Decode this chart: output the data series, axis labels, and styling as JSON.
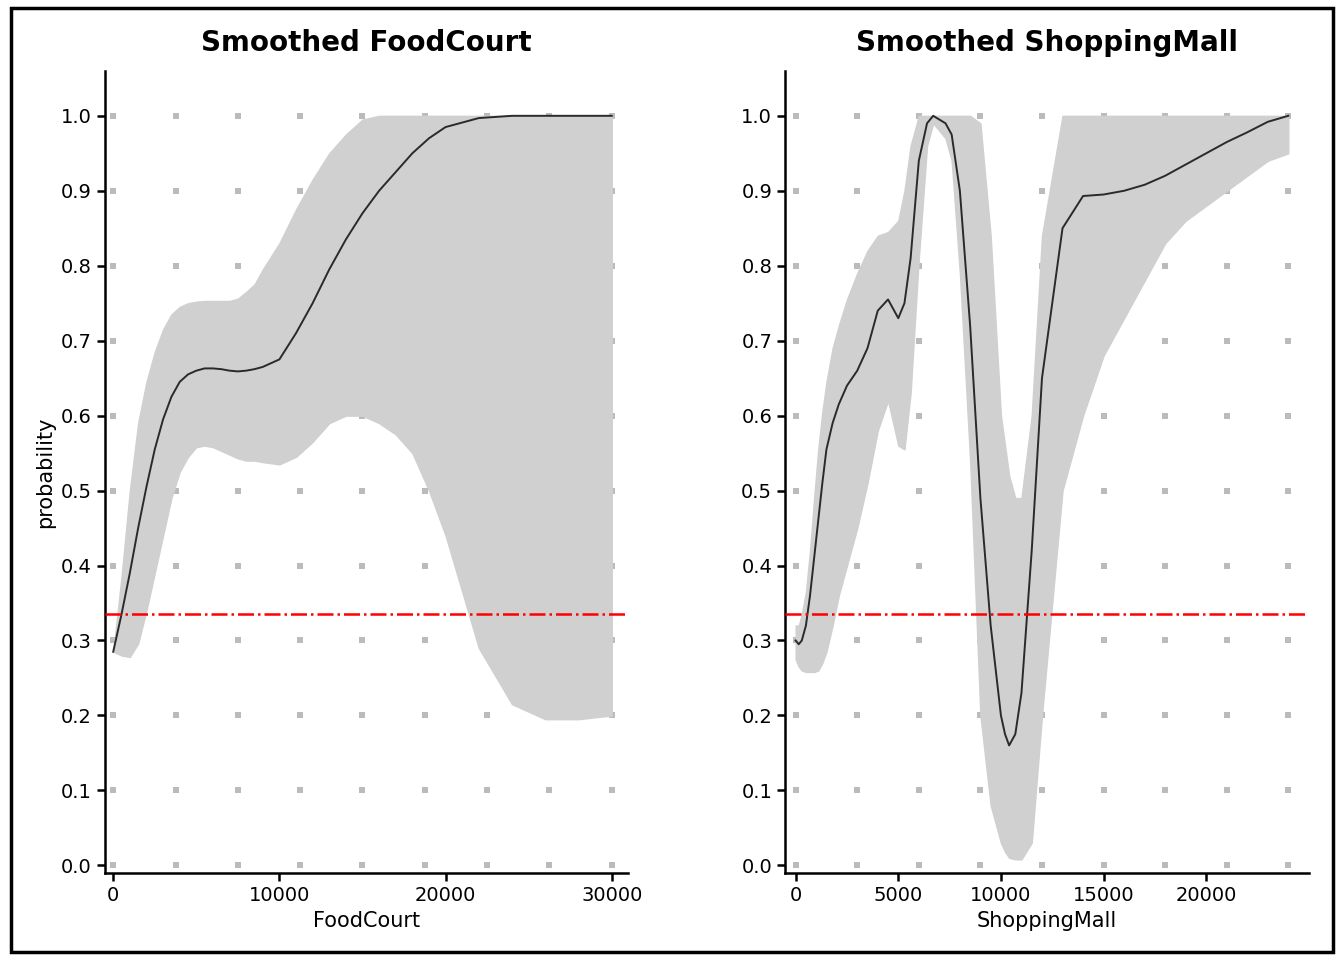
{
  "fc_title": "Smoothed FoodCourt",
  "sm_title": "Smoothed ShoppingMall",
  "fc_xlabel": "FoodCourt",
  "sm_xlabel": "ShoppingMall",
  "ylabel": "probability",
  "avg_prob": 0.336,
  "fc_xlim": [
    -500,
    31000
  ],
  "fc_ylim": [
    -0.01,
    1.06
  ],
  "sm_xlim": [
    -500,
    25000
  ],
  "sm_ylim": [
    -0.01,
    1.06
  ],
  "fc_xticks": [
    0,
    10000,
    20000,
    30000
  ],
  "sm_xticks": [
    0,
    5000,
    10000,
    15000,
    20000
  ],
  "yticks": [
    0.0,
    0.1,
    0.2,
    0.3,
    0.4,
    0.5,
    0.6,
    0.7,
    0.8,
    0.9,
    1.0
  ],
  "title_fontsize": 20,
  "label_fontsize": 15,
  "tick_fontsize": 14,
  "line_color": "#2a2a2a",
  "ci_color": "#d0d0d0",
  "avg_color": "#ff0000",
  "background_color": "#ffffff",
  "border_color": "#000000",
  "grid_color": "#b0b0b0",
  "fc_x": [
    0,
    500,
    1000,
    1500,
    2000,
    2500,
    3000,
    3500,
    4000,
    4500,
    5000,
    5500,
    6000,
    6500,
    7000,
    7500,
    8000,
    8500,
    9000,
    10000,
    11000,
    12000,
    13000,
    14000,
    15000,
    16000,
    17000,
    18000,
    19000,
    20000,
    22000,
    24000,
    26000,
    28000,
    30000
  ],
  "fc_y": [
    0.285,
    0.335,
    0.39,
    0.45,
    0.505,
    0.555,
    0.595,
    0.625,
    0.645,
    0.655,
    0.66,
    0.663,
    0.663,
    0.662,
    0.66,
    0.659,
    0.66,
    0.662,
    0.665,
    0.675,
    0.71,
    0.75,
    0.795,
    0.835,
    0.87,
    0.9,
    0.925,
    0.95,
    0.97,
    0.985,
    0.997,
    1.0,
    1.0,
    1.0,
    1.0
  ],
  "fc_upper": [
    0.285,
    0.385,
    0.5,
    0.59,
    0.645,
    0.685,
    0.715,
    0.735,
    0.745,
    0.75,
    0.752,
    0.753,
    0.753,
    0.753,
    0.753,
    0.756,
    0.765,
    0.775,
    0.795,
    0.83,
    0.875,
    0.915,
    0.95,
    0.975,
    0.995,
    1.0,
    1.0,
    1.0,
    1.0,
    1.0,
    1.0,
    1.0,
    1.0,
    1.0,
    1.0
  ],
  "fc_lower": [
    0.285,
    0.28,
    0.278,
    0.296,
    0.34,
    0.39,
    0.44,
    0.49,
    0.525,
    0.545,
    0.558,
    0.56,
    0.558,
    0.553,
    0.548,
    0.543,
    0.54,
    0.54,
    0.538,
    0.535,
    0.545,
    0.565,
    0.59,
    0.6,
    0.6,
    0.59,
    0.575,
    0.55,
    0.5,
    0.44,
    0.29,
    0.215,
    0.195,
    0.195,
    0.2
  ],
  "sm_x": [
    0,
    150,
    300,
    500,
    700,
    900,
    1100,
    1300,
    1500,
    1800,
    2100,
    2500,
    3000,
    3500,
    4000,
    4500,
    5000,
    5300,
    5600,
    6000,
    6400,
    6700,
    7000,
    7300,
    7600,
    8000,
    8500,
    9000,
    9500,
    10000,
    10200,
    10400,
    10700,
    11000,
    11500,
    12000,
    13000,
    14000,
    15000,
    16000,
    17000,
    18000,
    19000,
    20000,
    21000,
    22000,
    23000,
    24000
  ],
  "sm_y": [
    0.3,
    0.295,
    0.3,
    0.32,
    0.36,
    0.41,
    0.46,
    0.51,
    0.555,
    0.59,
    0.615,
    0.64,
    0.66,
    0.69,
    0.74,
    0.755,
    0.73,
    0.75,
    0.81,
    0.94,
    0.99,
    1.0,
    0.995,
    0.99,
    0.975,
    0.9,
    0.72,
    0.49,
    0.32,
    0.2,
    0.175,
    0.16,
    0.175,
    0.23,
    0.42,
    0.65,
    0.85,
    0.893,
    0.895,
    0.9,
    0.908,
    0.92,
    0.935,
    0.95,
    0.965,
    0.978,
    0.992,
    1.0
  ],
  "sm_upper": [
    0.32,
    0.32,
    0.335,
    0.365,
    0.42,
    0.49,
    0.555,
    0.605,
    0.645,
    0.69,
    0.72,
    0.755,
    0.79,
    0.82,
    0.84,
    0.845,
    0.86,
    0.9,
    0.96,
    1.0,
    1.0,
    1.0,
    1.0,
    1.0,
    1.0,
    1.0,
    1.0,
    0.99,
    0.84,
    0.6,
    0.56,
    0.52,
    0.49,
    0.49,
    0.6,
    0.84,
    1.0,
    1.0,
    1.0,
    1.0,
    1.0,
    1.0,
    1.0,
    1.0,
    1.0,
    1.0,
    1.0,
    1.0
  ],
  "sm_lower": [
    0.275,
    0.265,
    0.26,
    0.258,
    0.258,
    0.258,
    0.26,
    0.27,
    0.285,
    0.32,
    0.36,
    0.4,
    0.45,
    0.51,
    0.58,
    0.62,
    0.56,
    0.555,
    0.63,
    0.81,
    0.96,
    0.99,
    0.98,
    0.97,
    0.94,
    0.79,
    0.54,
    0.2,
    0.08,
    0.03,
    0.018,
    0.01,
    0.008,
    0.008,
    0.03,
    0.2,
    0.5,
    0.6,
    0.68,
    0.73,
    0.78,
    0.83,
    0.86,
    0.88,
    0.9,
    0.92,
    0.94,
    0.95
  ]
}
